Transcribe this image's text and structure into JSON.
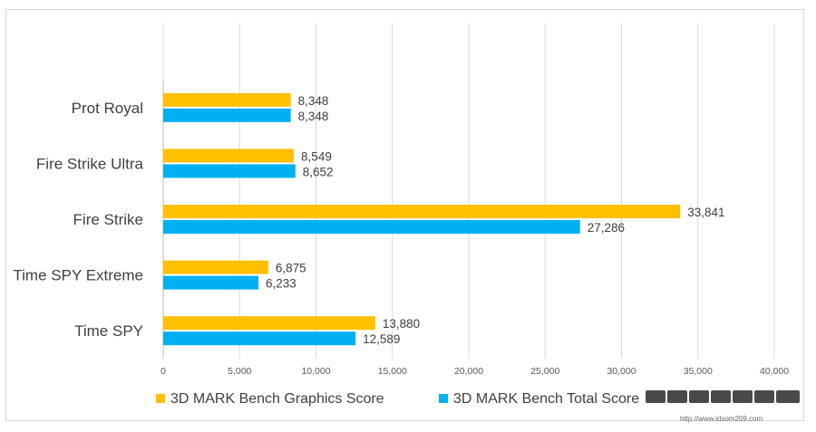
{
  "chart_data": {
    "type": "bar",
    "orientation": "horizontal",
    "categories": [
      "Prot Royal",
      "Fire Strike Ultra",
      "Fire Strike",
      "Time SPY Extreme",
      "Time SPY"
    ],
    "series": [
      {
        "name": "3D MARK Bench Graphics Score",
        "color": "#FFC000",
        "values": [
          8348,
          8549,
          33841,
          6875,
          13880
        ],
        "labels": [
          "8,348",
          "8,549",
          "33,841",
          "6,875",
          "13,880"
        ]
      },
      {
        "name": "3D MARK Bench Total Score",
        "color": "#00B0F0",
        "values": [
          8348,
          8652,
          27286,
          6233,
          12589
        ],
        "labels": [
          "8,348",
          "8,652",
          "27,286",
          "6,233",
          "12,589"
        ]
      }
    ],
    "xlim": [
      0,
      40000
    ],
    "xticks": [
      0,
      5000,
      10000,
      15000,
      20000,
      25000,
      30000,
      35000,
      40000
    ],
    "xtick_labels": [
      "0",
      "5,000",
      "10,000",
      "15,000",
      "20,000",
      "25,000",
      "30,000",
      "35,000",
      "40,000"
    ],
    "grid": "vertical",
    "legend": "bottom",
    "title": "",
    "xlabel": "",
    "ylabel": ""
  },
  "watermark": {
    "text": "http://www.idsom209.com"
  }
}
